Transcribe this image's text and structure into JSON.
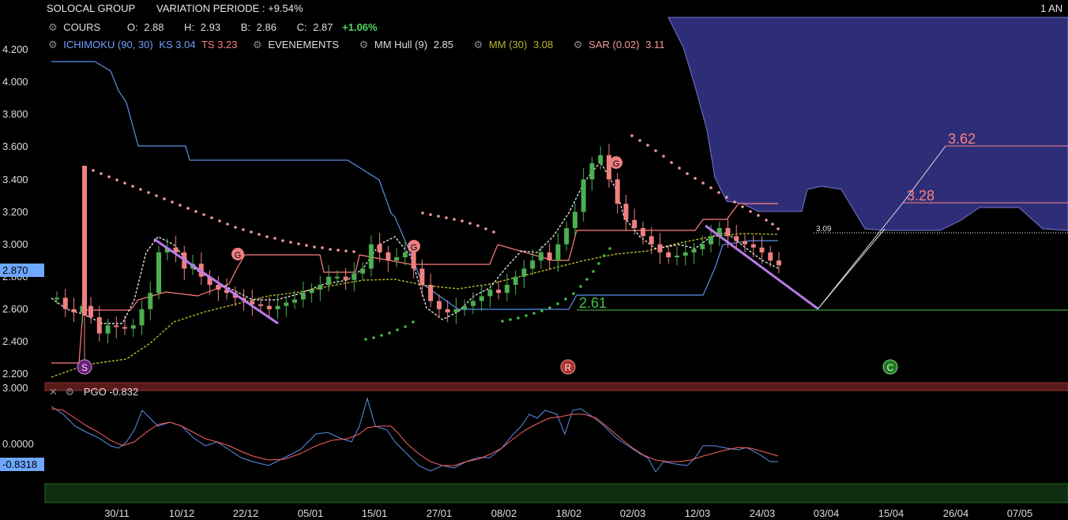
{
  "header": {
    "instrument": "SOLOCAL GROUP",
    "variation": "VARIATION PERIODE : +9.54%",
    "period": "1 AN"
  },
  "ohlc": {
    "label": "COURS",
    "o_label": "O:",
    "o_value": "2.88",
    "h_label": "H:",
    "h_value": "2.93",
    "b_label": "B:",
    "b_value": "2.86",
    "c_label": "C:",
    "c_value": "2.87",
    "change": "+1.06%"
  },
  "indicators": {
    "ichimoku": "ICHIMOKU (90, 30)",
    "ks": "KS 3.04",
    "ts": "TS 3.23",
    "events": "EVENEMENTS",
    "hull": "MM Hull (9)",
    "hull_value": "2.85",
    "mm": "MM (30)",
    "mm_value": "3.08",
    "sar": "SAR (0.02)",
    "sar_value": "3.11"
  },
  "pgo": {
    "label": "PGO",
    "value": "-0.832",
    "axis_top": "3.000",
    "axis_zero": "0.0000",
    "current": "-0.8318"
  },
  "price_axis": {
    "ticks": [
      "4.200",
      "4.000",
      "3.800",
      "3.600",
      "3.400",
      "3.200",
      "3.000",
      "2.800",
      "2.600",
      "2.400",
      "2.200"
    ],
    "current": "2.870"
  },
  "annotations": {
    "level_309": "3.09",
    "level_362": "3.62",
    "level_328": "3.28",
    "level_261": "2.61",
    "marker_s": "S",
    "marker_r": "R",
    "marker_c": "C",
    "marker_g": "G"
  },
  "colors": {
    "up": "#4caf50",
    "down": "#f08080",
    "kijun": "#5b8fe8",
    "tenkan": "#ff7f7f",
    "cloud": "#2e2e78",
    "mm30": "#b8b82a",
    "sar": "#f59a9a",
    "sar_up": "#3fbf3f",
    "trend": "#b77be8",
    "pgo_blue": "#5b8fe8",
    "pgo_red": "#ff6060"
  },
  "chart_data": {
    "type": "line",
    "x_labels": [
      "30/11",
      "10/12",
      "22/12",
      "05/01",
      "15/01",
      "27/01",
      "08/02",
      "18/02",
      "02/03",
      "12/03",
      "24/03",
      "03/04",
      "15/04",
      "26/04",
      "07/05"
    ],
    "ylim": [
      2.2,
      4.2
    ],
    "series": [
      {
        "name": "COURS",
        "values": [
          2.67,
          2.6,
          2.58,
          2.62,
          2.55,
          2.45,
          2.5,
          2.49,
          2.48,
          2.5,
          2.6,
          2.7,
          2.95,
          2.98,
          2.95,
          2.85,
          2.88,
          2.8,
          2.75,
          2.72,
          2.7,
          2.67,
          2.65,
          2.63,
          2.62,
          2.6,
          2.62,
          2.64,
          2.66,
          2.7,
          2.72,
          2.75,
          2.8,
          2.8,
          2.78,
          2.82,
          2.85,
          3.0,
          2.95,
          2.9,
          2.92,
          2.95,
          2.85,
          2.75,
          2.65,
          2.6,
          2.58,
          2.6,
          2.62,
          2.65,
          2.68,
          2.72,
          2.7,
          2.75,
          2.8,
          2.85,
          2.9,
          2.95,
          2.9,
          3.0,
          3.1,
          3.2,
          3.4,
          3.5,
          3.55,
          3.4,
          3.25,
          3.15,
          3.1,
          3.05,
          3.0,
          2.95,
          2.92,
          2.93,
          2.95,
          2.97,
          3.0,
          3.05,
          3.1,
          3.05,
          3.02,
          3.0,
          2.98,
          2.95,
          2.9,
          2.87
        ]
      },
      {
        "name": "MM Hull (9)",
        "values": [
          2.67,
          2.62,
          2.58,
          2.55,
          2.52,
          2.5,
          2.49,
          2.48,
          2.49,
          2.53,
          2.62,
          2.8,
          2.95,
          3.03,
          3.02,
          2.95,
          2.87,
          2.8,
          2.75,
          2.72,
          2.69,
          2.67,
          2.65,
          2.63,
          2.62,
          2.61,
          2.62,
          2.64,
          2.67,
          2.7,
          2.73,
          2.76,
          2.79,
          2.8,
          2.8,
          2.82,
          2.86,
          2.96,
          3.02,
          2.98,
          2.95,
          2.92,
          2.86,
          2.77,
          2.66,
          2.59,
          2.56,
          2.57,
          2.6,
          2.64,
          2.68,
          2.71,
          2.72,
          2.75,
          2.8,
          2.85,
          2.9,
          2.93,
          2.93,
          2.98,
          3.08,
          3.2,
          3.38,
          3.5,
          3.53,
          3.43,
          3.27,
          3.14,
          3.07,
          3.02,
          2.98,
          2.95,
          2.93,
          2.93,
          2.95,
          2.97,
          3.0,
          3.05,
          3.07,
          3.05,
          3.02,
          2.99,
          2.97,
          2.94,
          2.9,
          2.85
        ]
      },
      {
        "name": "MM (30)",
        "values": [
          2.18,
          2.2,
          2.22,
          2.25,
          2.28,
          2.35,
          2.45,
          2.55,
          2.62,
          2.66,
          2.68,
          2.69,
          2.7,
          2.7,
          2.72,
          2.74,
          2.76,
          2.78,
          2.79,
          2.78,
          2.76,
          2.75,
          2.76,
          2.78,
          2.8,
          2.85,
          2.9,
          2.93,
          2.96,
          3.0,
          3.02,
          3.04,
          3.06,
          3.07,
          3.08,
          3.08,
          3.07
        ]
      },
      {
        "name": "SAR (0.02)",
        "values": [
          3.48,
          3.45,
          3.42,
          3.38,
          3.34,
          3.3,
          3.26,
          3.22,
          3.18,
          3.14,
          3.1,
          3.06,
          3.02,
          2.98,
          3.2,
          3.18,
          3.15,
          3.12,
          3.1,
          2.42,
          2.45,
          2.48,
          2.52,
          2.55,
          2.6,
          2.65,
          2.7,
          2.76,
          2.82,
          2.88,
          3.68,
          3.6,
          3.5,
          3.4,
          3.3,
          3.2,
          3.11
        ]
      }
    ],
    "pgo": {
      "name": "PGO",
      "current": -0.8318
    }
  }
}
